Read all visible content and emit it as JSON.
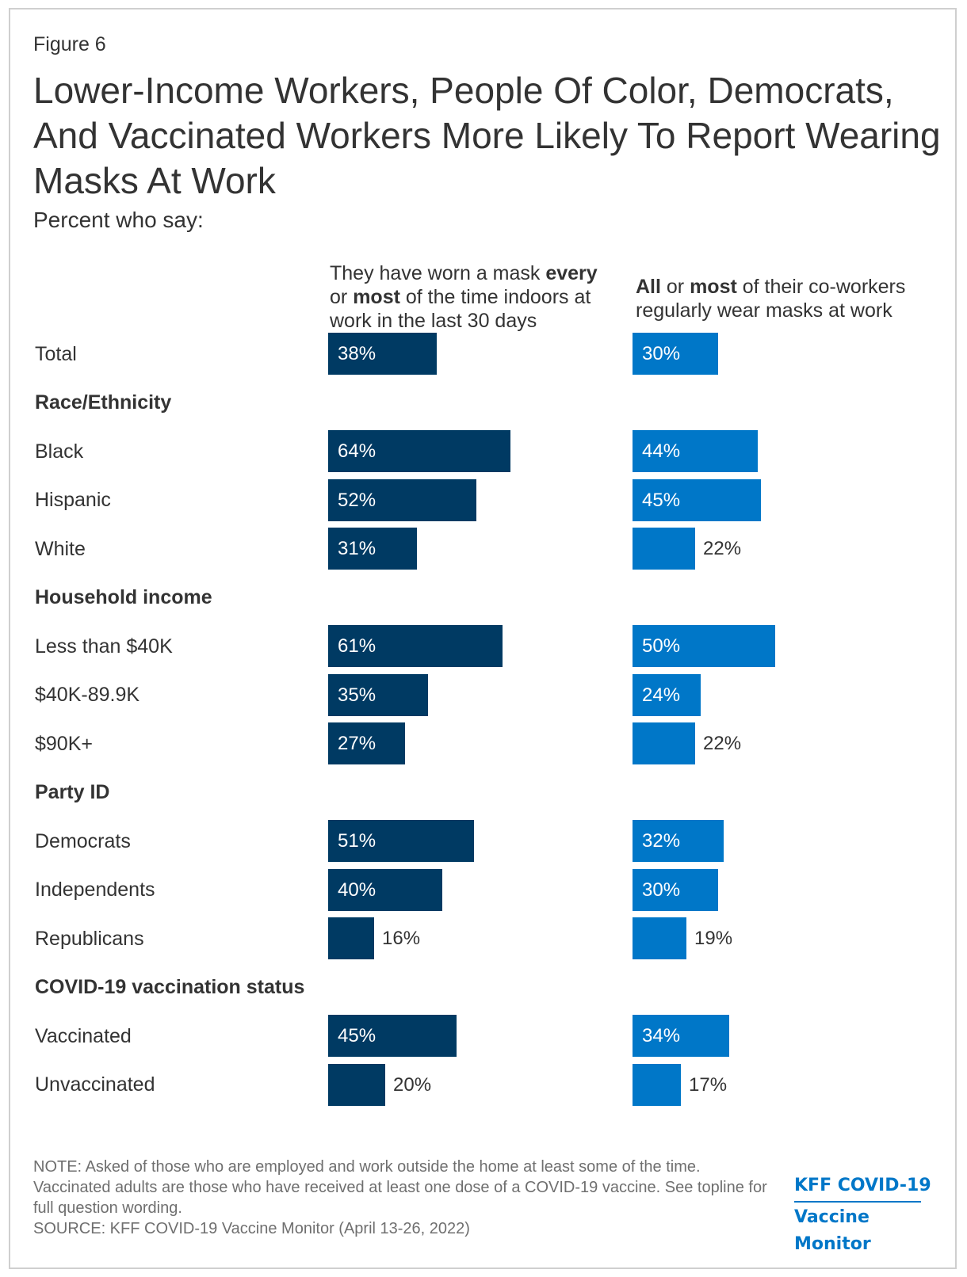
{
  "figure_label": "Figure 6",
  "title": "Lower-Income Workers, People Of Color, Democrats, And Vaccinated Workers More Likely To Report Wearing Masks At Work",
  "subtitle": "Percent who say:",
  "columns": {
    "col1": {
      "parts": [
        "They have worn a mask ",
        "every",
        " or ",
        "most",
        " of the time indoors at work in the last 30 days"
      ]
    },
    "col2": {
      "parts": [
        "All",
        " or ",
        "most",
        " of their co-workers regularly wear masks at work"
      ]
    }
  },
  "colors": {
    "series1": "#003a63",
    "series2": "#0077c8"
  },
  "chart_data": {
    "type": "bar",
    "orientation": "horizontal",
    "unit": "%",
    "xlim": [
      0,
      100
    ],
    "grid": false,
    "legend": "none",
    "rows": [
      {
        "label": "Total",
        "kind": "category",
        "values": [
          38,
          30
        ],
        "value_labels": [
          "38%",
          "30%"
        ]
      },
      {
        "label": "Race/Ethnicity",
        "kind": "section"
      },
      {
        "label": "Black",
        "kind": "category",
        "values": [
          64,
          44
        ],
        "value_labels": [
          "64%",
          "44%"
        ]
      },
      {
        "label": "Hispanic",
        "kind": "category",
        "values": [
          52,
          45
        ],
        "value_labels": [
          "52%",
          "45%"
        ]
      },
      {
        "label": "White",
        "kind": "category",
        "values": [
          31,
          22
        ],
        "value_labels": [
          "31%",
          "22%"
        ]
      },
      {
        "label": "Household income",
        "kind": "section"
      },
      {
        "label": "Less than $40K",
        "kind": "category",
        "values": [
          61,
          50
        ],
        "value_labels": [
          "61%",
          "50%"
        ]
      },
      {
        "label": "$40K-89.9K",
        "kind": "category",
        "values": [
          35,
          24
        ],
        "value_labels": [
          "35%",
          "24%"
        ]
      },
      {
        "label": "$90K+",
        "kind": "category",
        "values": [
          27,
          22
        ],
        "value_labels": [
          "27%",
          "22%"
        ]
      },
      {
        "label": "Party ID",
        "kind": "section"
      },
      {
        "label": "Democrats",
        "kind": "category",
        "values": [
          51,
          32
        ],
        "value_labels": [
          "51%",
          "32%"
        ]
      },
      {
        "label": "Independents",
        "kind": "category",
        "values": [
          40,
          30
        ],
        "value_labels": [
          "40%",
          "30%"
        ]
      },
      {
        "label": "Republicans",
        "kind": "category",
        "values": [
          16,
          19
        ],
        "value_labels": [
          "16%",
          "19%"
        ]
      },
      {
        "label": "COVID-19 vaccination status",
        "kind": "section"
      },
      {
        "label": "Vaccinated",
        "kind": "category",
        "values": [
          45,
          34
        ],
        "value_labels": [
          "45%",
          "34%"
        ]
      },
      {
        "label": "Unvaccinated",
        "kind": "category",
        "values": [
          20,
          17
        ],
        "value_labels": [
          "20%",
          "17%"
        ]
      }
    ]
  },
  "note": {
    "line1": "NOTE: Asked of those who are employed and work outside the home at least some of the time. Vaccinated adults are those who have received at least one dose of a COVID-19 vaccine. See topline for full question wording.",
    "line2": "SOURCE: KFF COVID-19 Vaccine Monitor (April 13-26, 2022)"
  },
  "brand": {
    "line1": "KFF COVID-19",
    "line2": "Vaccine Monitor"
  }
}
